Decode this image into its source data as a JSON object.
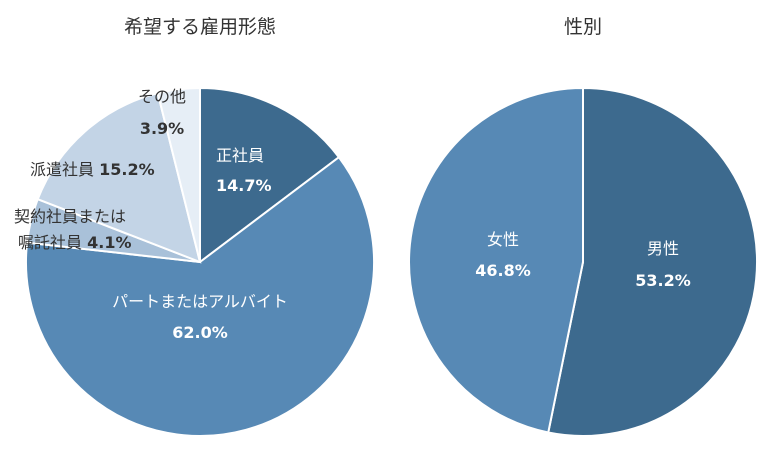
{
  "chart_data": [
    {
      "type": "pie",
      "title": "希望する雇用形態",
      "slices": [
        {
          "label": "正社員",
          "value": 14.7,
          "value_label": "14.7%",
          "color": "#3d6a8e"
        },
        {
          "label": "パートまたはアルバイト",
          "value": 62.0,
          "value_label": "62.0%",
          "color": "#5789b5"
        },
        {
          "label_lines": [
            "契約社員または",
            "嘱託社員"
          ],
          "value": 4.1,
          "value_label": "4.1%",
          "color": "#a9c1d9"
        },
        {
          "label": "派遣社員",
          "value": 15.2,
          "value_label": "15.2%",
          "color": "#c3d4e6"
        },
        {
          "label": "その他",
          "value": 3.9,
          "value_label": "3.9%",
          "color": "#e6eef6"
        }
      ]
    },
    {
      "type": "pie",
      "title": "性別",
      "slices": [
        {
          "label": "男性",
          "value": 53.2,
          "value_label": "53.2%",
          "color": "#3d6a8e"
        },
        {
          "label": "女性",
          "value": 46.8,
          "value_label": "46.8%",
          "color": "#5789b5"
        }
      ]
    }
  ]
}
